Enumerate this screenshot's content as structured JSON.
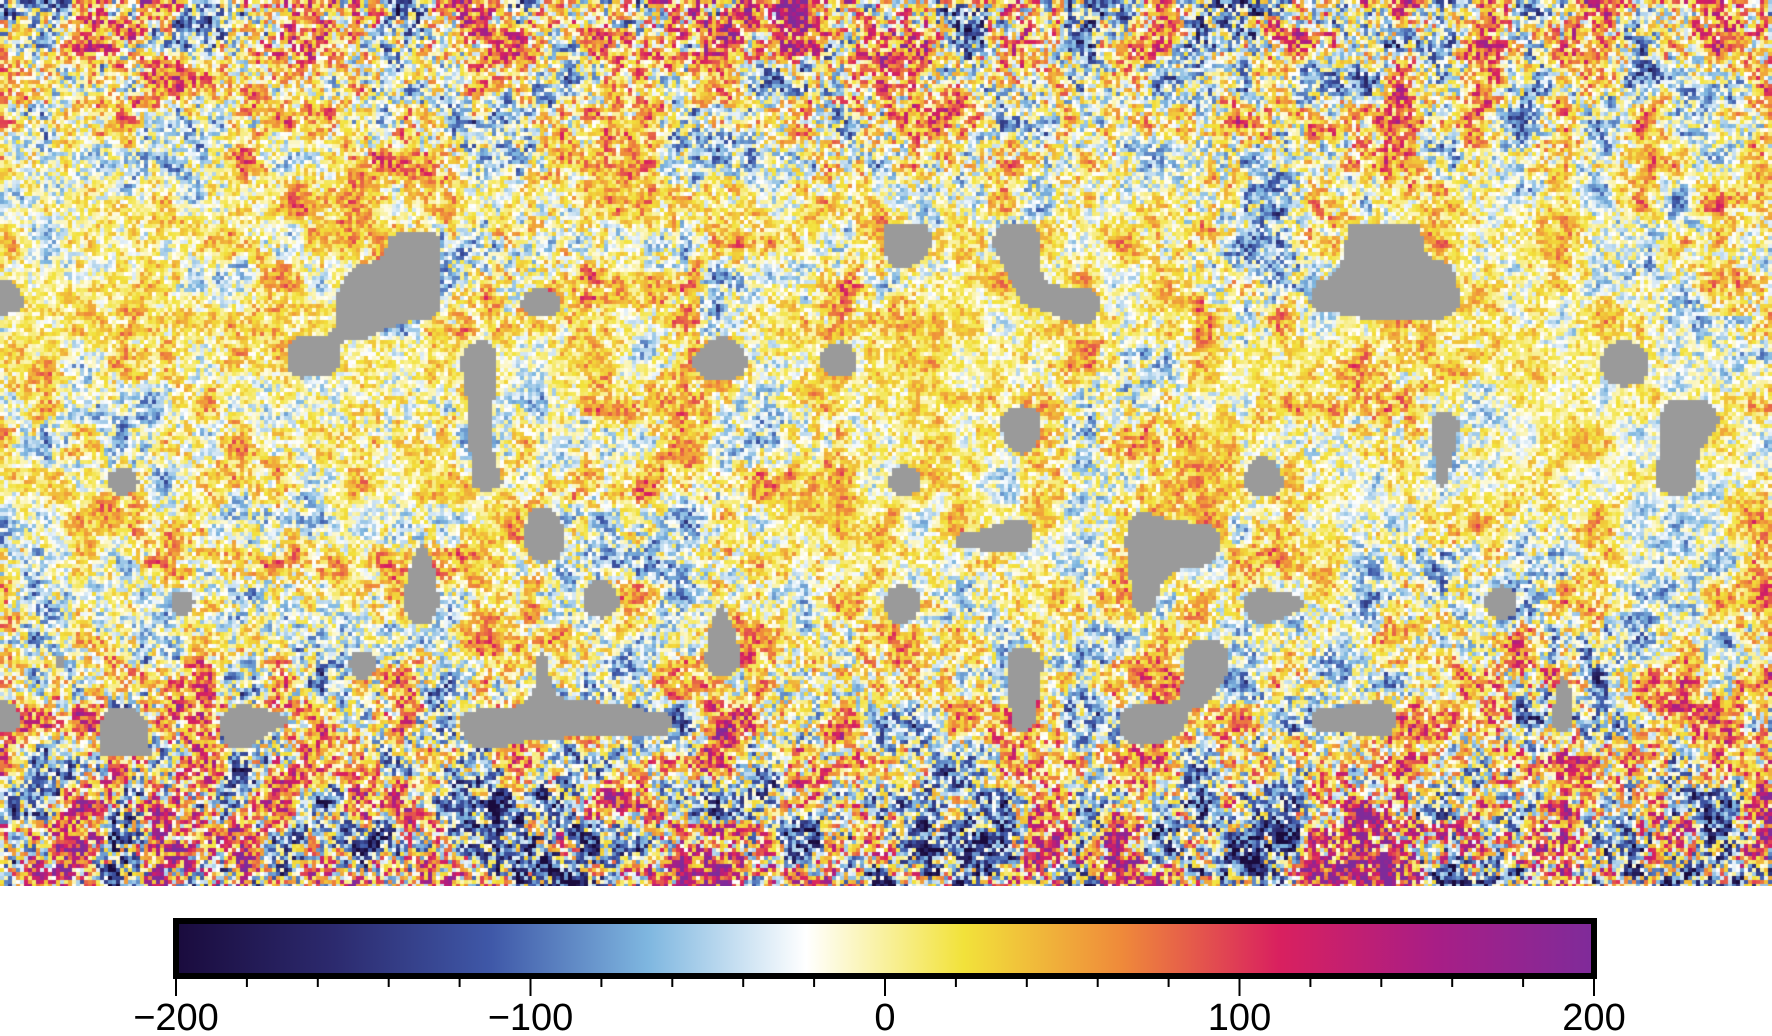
{
  "map": {
    "description_free": true,
    "colormap_stops": [
      "#1a0b3d",
      "#2c2a6e",
      "#3f58a8",
      "#7fb7e0",
      "#ffffff",
      "#f2e23a",
      "#ef8a3a",
      "#d9205f",
      "#a81e86",
      "#7f2b9a"
    ],
    "missing_data_color": "#9a9a9a"
  },
  "colorbar": {
    "min": -200,
    "max": 200,
    "major_ticks": [
      -200,
      -100,
      0,
      100,
      200
    ],
    "major_tick_labels": [
      "−200",
      "−100",
      "0",
      "100",
      "200"
    ],
    "minor_tick_step": 20
  }
}
